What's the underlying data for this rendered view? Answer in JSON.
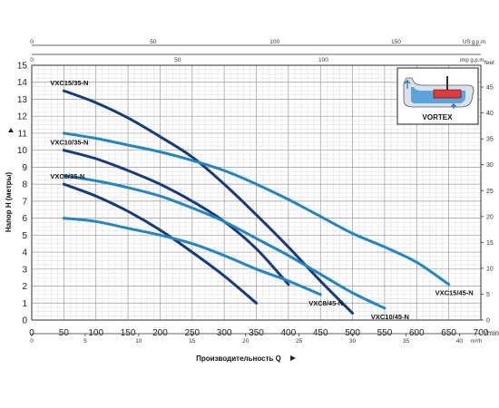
{
  "chart_data": {
    "type": "line",
    "x_unit": "l/min",
    "y_unit": "m",
    "xlim": [
      0,
      700
    ],
    "ylim": [
      0,
      15
    ],
    "grid": true,
    "xlabel": "Производительность Q",
    "ylabel": "Напор H (метры)",
    "x_ticks": [
      0,
      50,
      100,
      150,
      200,
      250,
      300,
      350,
      400,
      450,
      500,
      550,
      600,
      650,
      700
    ],
    "y_ticks": [
      0,
      1,
      2,
      3,
      4,
      5,
      6,
      7,
      8,
      9,
      10,
      11,
      12,
      13,
      14,
      15
    ],
    "secondary_axes": {
      "top_usgpm": {
        "unit": "US g.p.m.",
        "ticks": [
          0,
          50,
          100,
          150
        ]
      },
      "top_impgpm": {
        "unit": "imp g.p.m.",
        "ticks": [
          0,
          50,
          100
        ]
      },
      "bottom_m3h": {
        "unit": "m³/h",
        "ticks": [
          0,
          5,
          10,
          15,
          20,
          25,
          30,
          35,
          40
        ]
      },
      "right_feet": {
        "unit": "feet",
        "ticks": [
          0,
          5,
          10,
          15,
          20,
          25,
          30,
          35,
          40,
          45
        ]
      }
    },
    "series": [
      {
        "name": "VXC15/35-N",
        "color": "#163d7a",
        "points": [
          [
            50,
            13.5
          ],
          [
            100,
            12.8
          ],
          [
            150,
            11.9
          ],
          [
            200,
            10.8
          ],
          [
            250,
            9.6
          ],
          [
            300,
            8.0
          ],
          [
            350,
            6.2
          ],
          [
            400,
            4.3
          ],
          [
            450,
            2.3
          ],
          [
            500,
            0.4
          ]
        ]
      },
      {
        "name": "VXC10/35-N",
        "color": "#163d7a",
        "points": [
          [
            50,
            10.0
          ],
          [
            100,
            9.5
          ],
          [
            150,
            8.8
          ],
          [
            200,
            8.0
          ],
          [
            250,
            7.0
          ],
          [
            300,
            5.8
          ],
          [
            350,
            4.2
          ],
          [
            400,
            2.1
          ]
        ]
      },
      {
        "name": "VXC8/35-N",
        "color": "#163d7a",
        "points": [
          [
            50,
            8.0
          ],
          [
            100,
            7.3
          ],
          [
            150,
            6.4
          ],
          [
            200,
            5.3
          ],
          [
            250,
            4.0
          ],
          [
            300,
            2.6
          ],
          [
            350,
            1.0
          ]
        ]
      },
      {
        "name": "VXC15/45-N",
        "color": "#2187c4",
        "points": [
          [
            50,
            11.0
          ],
          [
            100,
            10.7
          ],
          [
            150,
            10.3
          ],
          [
            200,
            9.9
          ],
          [
            250,
            9.4
          ],
          [
            300,
            8.8
          ],
          [
            350,
            8.0
          ],
          [
            400,
            7.1
          ],
          [
            450,
            6.1
          ],
          [
            500,
            5.1
          ],
          [
            550,
            4.3
          ],
          [
            600,
            3.4
          ],
          [
            650,
            2.1
          ]
        ]
      },
      {
        "name": "VXC10/45-N",
        "color": "#2187c4",
        "points": [
          [
            50,
            8.5
          ],
          [
            100,
            8.2
          ],
          [
            150,
            7.8
          ],
          [
            200,
            7.3
          ],
          [
            250,
            6.6
          ],
          [
            300,
            5.8
          ],
          [
            350,
            4.8
          ],
          [
            400,
            3.8
          ],
          [
            450,
            2.7
          ],
          [
            500,
            1.6
          ],
          [
            550,
            0.7
          ]
        ]
      },
      {
        "name": "VXC8/45-N",
        "color": "#2187c4",
        "points": [
          [
            50,
            6.0
          ],
          [
            100,
            5.8
          ],
          [
            150,
            5.4
          ],
          [
            200,
            5.0
          ],
          [
            250,
            4.5
          ],
          [
            300,
            3.8
          ],
          [
            350,
            3.0
          ],
          [
            400,
            2.3
          ],
          [
            450,
            1.5
          ]
        ]
      }
    ],
    "inset_label": "VORTEX"
  }
}
